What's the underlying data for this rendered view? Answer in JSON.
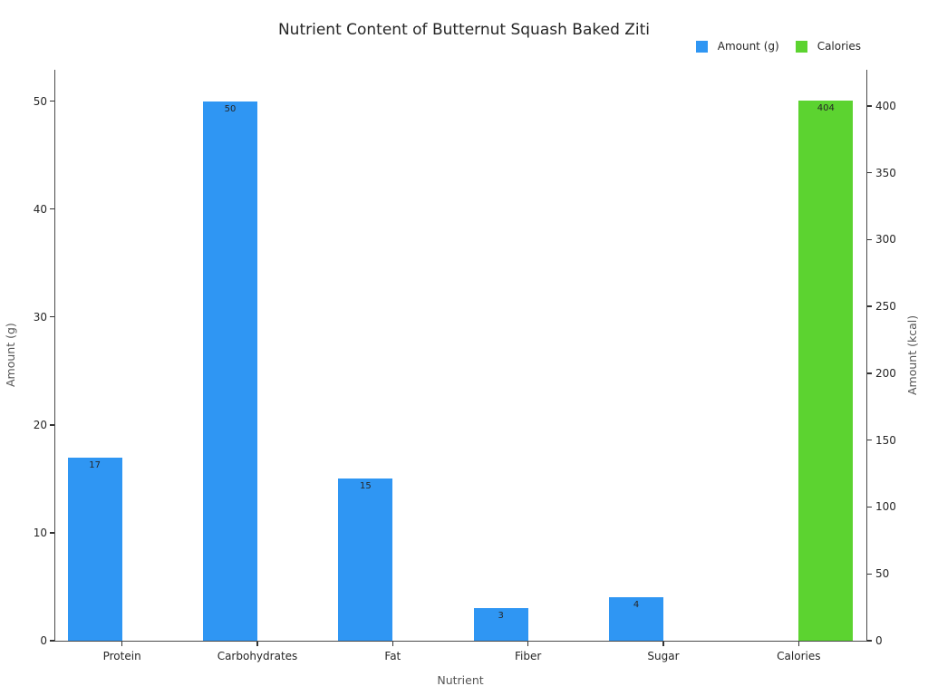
{
  "title": "Nutrient Content of Butternut Squash Baked Ziti",
  "legend": {
    "items": [
      {
        "label": "Amount (g)",
        "color": "#2f96f3"
      },
      {
        "label": "Calories",
        "color": "#5cd330"
      }
    ]
  },
  "chart_data": {
    "type": "bar",
    "title": "Nutrient Content of Butternut Squash Baked Ziti",
    "categories": [
      "Protein",
      "Carbohydrates",
      "Fat",
      "Fiber",
      "Sugar",
      "Calories"
    ],
    "series": [
      {
        "name": "Amount (g)",
        "axis": "left",
        "color": "#2f96f3",
        "values": [
          17,
          50,
          15,
          3,
          4,
          null
        ]
      },
      {
        "name": "Calories",
        "axis": "right",
        "color": "#5cd330",
        "values": [
          null,
          null,
          null,
          null,
          null,
          404
        ]
      }
    ],
    "xlabel": "Nutrient",
    "ylabel_left": "Amount (g)",
    "ylabel_right": "Amount (kcal)",
    "yticks_left": [
      0,
      10,
      20,
      30,
      40,
      50
    ],
    "yticks_right": [
      0,
      50,
      100,
      150,
      200,
      250,
      300,
      350,
      400
    ],
    "ylim_left": [
      0,
      52.9
    ],
    "ylim_right": [
      0,
      427
    ],
    "grid": false,
    "legend_position": "top-right",
    "bar_value_labels_shown": true
  },
  "colors": {
    "background": "#ffffff",
    "spine": "#4a4a4a",
    "tick_text": "#262626",
    "axis_label_text": "#555555"
  }
}
